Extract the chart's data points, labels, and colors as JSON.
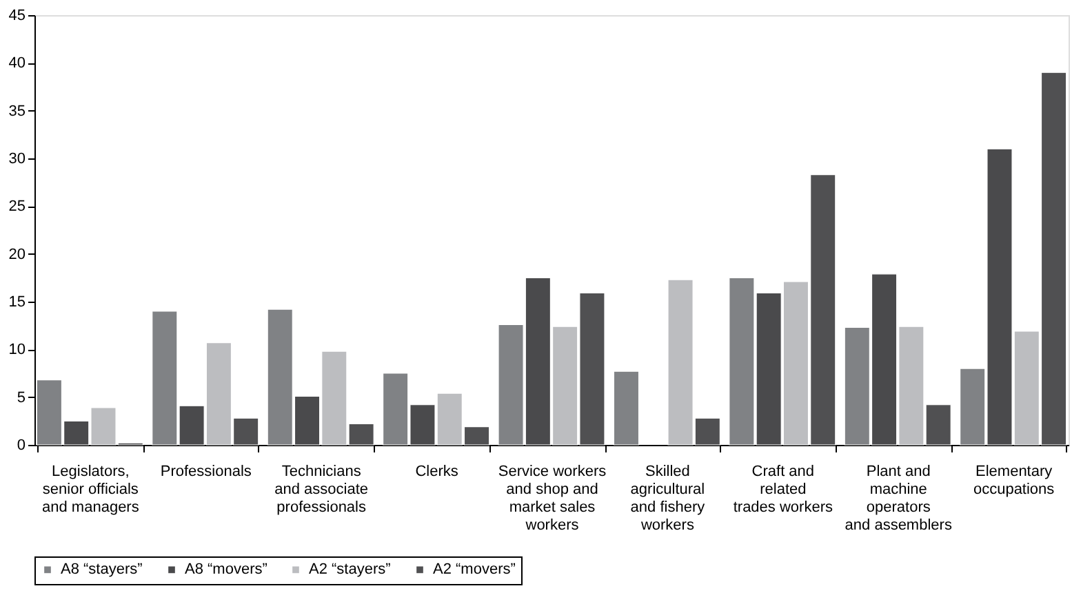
{
  "chart_data": {
    "type": "bar",
    "categories": [
      "Legislators,\nsenior officials\nand managers",
      "Professionals",
      "Technicians\nand associate\nprofessionals",
      "Clerks",
      "Service workers\nand shop and\nmarket sales\nworkers",
      "Skilled\nagricultural\nand fishery\nworkers",
      "Craft and\nrelated\ntrades workers",
      "Plant and\nmachine\noperators\nand assemblers",
      "Elementary\noccupations"
    ],
    "series": [
      {
        "name": "A8 “stayers”",
        "color": "#808285",
        "values": [
          6.8,
          14.0,
          14.2,
          7.5,
          12.6,
          7.7,
          17.5,
          12.3,
          8.0
        ]
      },
      {
        "name": "A8 “movers”",
        "color": "#4a4a4c",
        "values": [
          2.5,
          4.1,
          5.1,
          4.2,
          17.5,
          null,
          15.9,
          17.9,
          31.0
        ]
      },
      {
        "name": "A2 “stayers”",
        "color": "#bcbdc0",
        "values": [
          3.9,
          10.7,
          9.8,
          5.4,
          12.4,
          17.3,
          17.1,
          12.4,
          11.9
        ]
      },
      {
        "name": "A2 “movers”",
        "color": "#505052",
        "values": [
          0.2,
          2.8,
          2.2,
          1.9,
          15.9,
          2.8,
          28.3,
          4.2,
          39.0
        ]
      }
    ],
    "ylim": [
      0,
      45
    ],
    "yticks": [
      0,
      5,
      10,
      15,
      20,
      25,
      30,
      35,
      40,
      45
    ],
    "grid": false,
    "legend": "bottom"
  }
}
